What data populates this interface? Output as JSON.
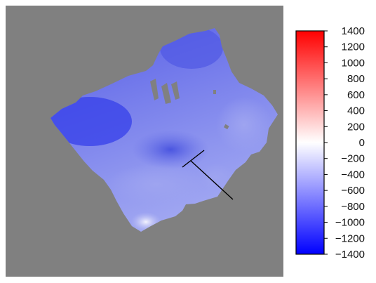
{
  "chart_data": {
    "type": "heatmap",
    "title": "",
    "xlabel": "",
    "ylabel": "",
    "background_color": "#808080",
    "colormap": {
      "low": "#0000ff",
      "mid": "#ffffff",
      "high": "#ff0000"
    },
    "color_range": [
      -1400,
      1400
    ],
    "colorbar_ticks": [
      1400,
      1200,
      1000,
      800,
      600,
      400,
      200,
      0,
      -200,
      -400,
      -600,
      -800,
      -1000,
      -1200,
      -1400
    ],
    "colorbar_tick_labels": [
      "1400",
      "1200",
      "1000",
      "800",
      "600",
      "400",
      "200",
      "0",
      "−200",
      "−400",
      "−600",
      "−800",
      "−1000",
      "−1200",
      "−1400"
    ],
    "legend_position": "right",
    "grid": false,
    "surface_value_range": [
      -1000,
      -100
    ],
    "annotations": [
      "black cross-section line"
    ]
  }
}
